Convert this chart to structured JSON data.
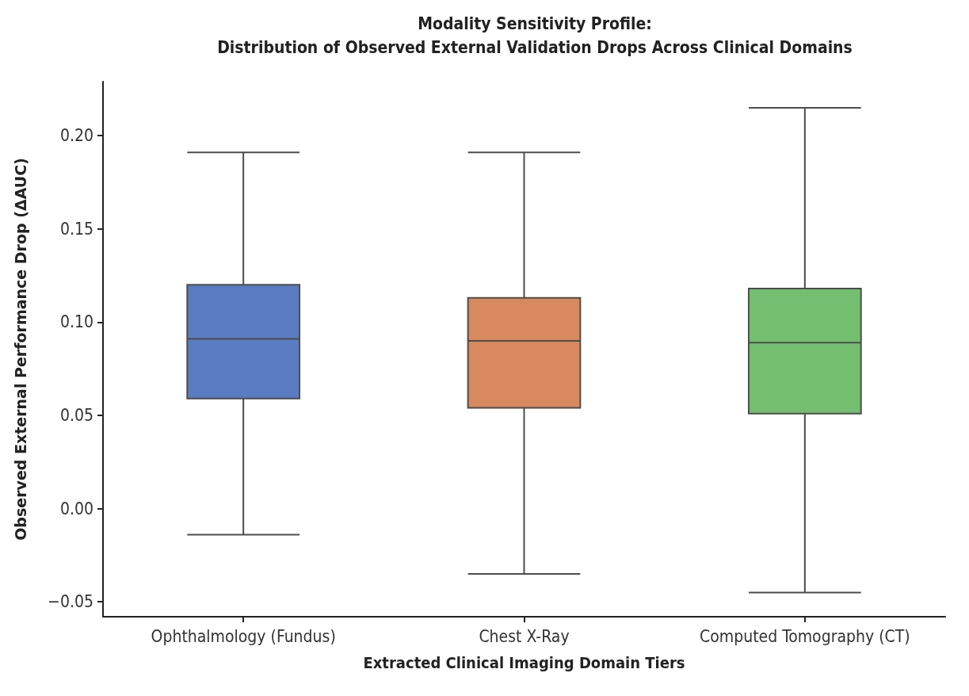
{
  "chart_data": {
    "type": "box",
    "title": "Modality Sensitivity Profile:\nDistribution of Observed External Validation Drops Across Clinical Domains",
    "xlabel": "Extracted Clinical Imaging Domain Tiers",
    "ylabel": "Observed External Performance Drop (ΔAUC)",
    "categories": [
      "Ophthalmology (Fundus)",
      "Chest X-Ray",
      "Computed Tomography (CT)"
    ],
    "colors": [
      "#5a7cc2",
      "#d9895e",
      "#74bf6f"
    ],
    "boxes": [
      {
        "low": -0.014,
        "q1": 0.059,
        "median": 0.091,
        "q3": 0.12,
        "high": 0.191
      },
      {
        "low": -0.035,
        "q1": 0.054,
        "median": 0.09,
        "q3": 0.113,
        "high": 0.191
      },
      {
        "low": -0.045,
        "q1": 0.051,
        "median": 0.089,
        "q3": 0.118,
        "high": 0.215
      }
    ],
    "ylim": [
      -0.058,
      0.229
    ],
    "yticks": [
      {
        "value": -0.05,
        "label": "−0.05"
      },
      {
        "value": 0,
        "label": "0.00"
      },
      {
        "value": 0.05,
        "label": "0.05"
      },
      {
        "value": 0.1,
        "label": "0.10"
      },
      {
        "value": 0.15,
        "label": "0.15"
      },
      {
        "value": 0.2,
        "label": "0.20"
      }
    ],
    "grid": false
  }
}
